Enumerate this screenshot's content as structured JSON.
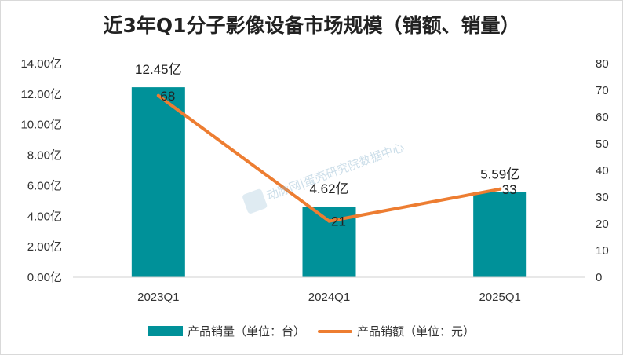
{
  "chart_data": {
    "type": "bar",
    "title": "近3年Q1分子影像设备市场规模（销额、销量）",
    "categories": [
      "2023Q1",
      "2024Q1",
      "2025Q1"
    ],
    "bar_series": {
      "name": "产品销量（单位：台）",
      "values": [
        12.45,
        4.62,
        5.59
      ],
      "labels": [
        "12.45亿",
        "4.62亿",
        "5.59亿"
      ],
      "color": "#009199"
    },
    "line_series": {
      "name": "产品销额（单位：元）",
      "values": [
        68,
        21,
        33
      ],
      "labels": [
        "68",
        "21",
        "33"
      ],
      "color": "#ED7D31"
    },
    "left_axis": {
      "ylim": [
        0,
        14
      ],
      "ticks": [
        "0.00亿",
        "2.00亿",
        "4.00亿",
        "6.00亿",
        "8.00亿",
        "10.00亿",
        "12.00亿",
        "14.00亿"
      ]
    },
    "right_axis": {
      "ylim": [
        0,
        80
      ],
      "ticks": [
        "0",
        "10",
        "20",
        "30",
        "40",
        "50",
        "60",
        "70",
        "80"
      ]
    },
    "legend_position": "bottom",
    "grid": false
  },
  "watermark": "动脉网|蛋壳研究院数据中心"
}
